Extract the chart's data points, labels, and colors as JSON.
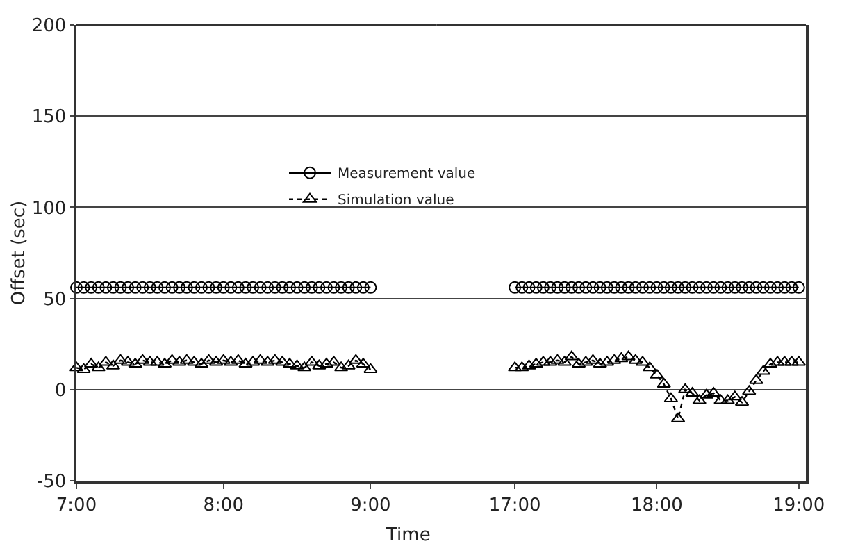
{
  "chart_data": [
    {
      "type": "line",
      "xlabel": "Time",
      "ylabel": "Offset (sec)",
      "xlim": [
        7,
        9.45
      ],
      "xticks": [
        {
          "value": 7,
          "label": "7:00"
        },
        {
          "value": 8,
          "label": "8:00"
        },
        {
          "value": 9,
          "label": "9:00"
        }
      ],
      "ylim": [
        -50,
        200
      ],
      "yticks": [
        -50,
        0,
        50,
        100,
        150,
        200
      ],
      "grid": "y",
      "legend": "top",
      "x": [
        7.0,
        7.05,
        7.1,
        7.15,
        7.2,
        7.25,
        7.3,
        7.35,
        7.4,
        7.45,
        7.5,
        7.55,
        7.6,
        7.65,
        7.7,
        7.75,
        7.8,
        7.85,
        7.9,
        7.95,
        8.0,
        8.05,
        8.1,
        8.15,
        8.2,
        8.25,
        8.3,
        8.35,
        8.4,
        8.45,
        8.5,
        8.55,
        8.6,
        8.65,
        8.7,
        8.75,
        8.8,
        8.85,
        8.9,
        8.95,
        9.0
      ],
      "series": [
        {
          "name": "Measurement value",
          "color": "#000000",
          "marker": "circle",
          "line_style": "solid",
          "values": [
            56,
            56,
            56,
            56,
            56,
            56,
            56,
            56,
            56,
            56,
            56,
            56,
            56,
            56,
            56,
            56,
            56,
            56,
            56,
            56,
            56,
            56,
            56,
            56,
            56,
            56,
            56,
            56,
            56,
            56,
            56,
            56,
            56,
            56,
            56,
            56,
            56,
            56,
            56,
            56,
            56
          ]
        },
        {
          "name": "Simulation value",
          "color": "#000000",
          "marker": "triangle",
          "line_style": "dotted",
          "values": [
            12,
            11,
            14,
            12,
            15,
            13,
            16,
            15,
            14,
            16,
            15,
            15,
            14,
            16,
            15,
            16,
            15,
            14,
            16,
            15,
            16,
            15,
            16,
            14,
            15,
            16,
            15,
            16,
            15,
            14,
            13,
            12,
            15,
            13,
            14,
            15,
            12,
            13,
            16,
            14,
            11
          ]
        }
      ]
    },
    {
      "type": "line",
      "xlim": [
        16.45,
        19.05
      ],
      "xticks": [
        {
          "value": 17,
          "label": "17:00"
        },
        {
          "value": 18,
          "label": "18:00"
        },
        {
          "value": 19,
          "label": "19:00"
        }
      ],
      "ylim": [
        -50,
        200
      ],
      "yticks": [
        -50,
        0,
        50,
        100,
        150,
        200
      ],
      "grid": "y",
      "tick_labels": "x",
      "x": [
        17.0,
        17.05,
        17.1,
        17.15,
        17.2,
        17.25,
        17.3,
        17.35,
        17.4,
        17.45,
        17.5,
        17.55,
        17.6,
        17.65,
        17.7,
        17.75,
        17.8,
        17.85,
        17.9,
        17.95,
        18.0,
        18.05,
        18.1,
        18.15,
        18.2,
        18.25,
        18.3,
        18.35,
        18.4,
        18.45,
        18.5,
        18.55,
        18.6,
        18.65,
        18.7,
        18.75,
        18.8,
        18.85,
        18.9,
        18.95,
        19.0
      ],
      "series": [
        {
          "color": "#000000",
          "marker": "circle",
          "line_style": "solid",
          "values": [
            56,
            56,
            56,
            56,
            56,
            56,
            56,
            56,
            56,
            56,
            56,
            56,
            56,
            56,
            56,
            56,
            56,
            56,
            56,
            56,
            56,
            56,
            56,
            56,
            56,
            56,
            56,
            56,
            56,
            56,
            56,
            56,
            56,
            56,
            56,
            56,
            56,
            56,
            56,
            56,
            56
          ]
        },
        {
          "color": "#000000",
          "marker": "triangle",
          "line_style": "dotted",
          "values": [
            12,
            12,
            13,
            14,
            15,
            15,
            16,
            15,
            18,
            14,
            15,
            16,
            14,
            15,
            16,
            17,
            18,
            16,
            15,
            12,
            8,
            3,
            -5,
            -16,
            0,
            -2,
            -6,
            -3,
            -2,
            -6,
            -6,
            -4,
            -7,
            -1,
            5,
            10,
            14,
            15,
            15,
            15,
            15
          ]
        }
      ]
    }
  ]
}
